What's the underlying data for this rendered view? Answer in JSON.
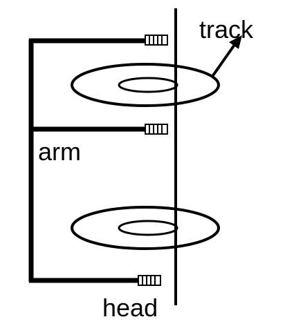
{
  "labels": {
    "track": "track",
    "arm": "arm",
    "head": "head"
  },
  "colors": {
    "stroke": "#000000",
    "background": "#ffffff"
  }
}
